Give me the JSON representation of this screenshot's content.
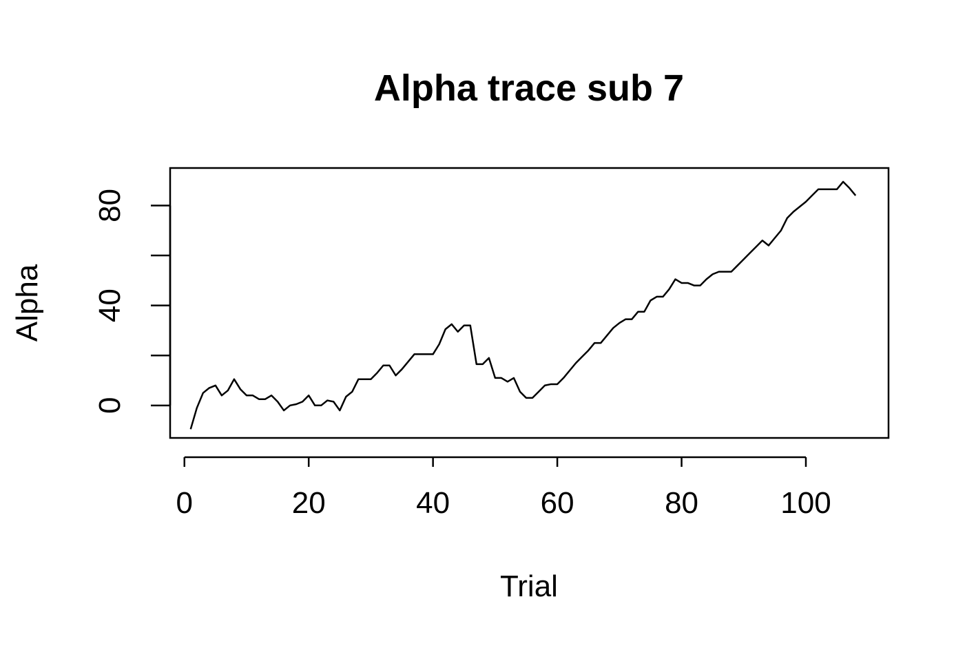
{
  "chart_data": {
    "type": "line",
    "title": "Alpha trace sub 7",
    "xlabel": "Trial",
    "ylabel": "Alpha",
    "xlim": [
      -2.3,
      113.3
    ],
    "ylim": [
      -13,
      95
    ],
    "xticks": [
      0,
      20,
      40,
      60,
      80,
      100
    ],
    "yticks": [
      0,
      20,
      40,
      60,
      80
    ],
    "yticks_labeled": [
      0,
      40,
      80
    ],
    "grid": false,
    "legend": "none",
    "series": [
      {
        "x": [
          1,
          2,
          3,
          4,
          5,
          6,
          7,
          8,
          9,
          10,
          11,
          12,
          13,
          14,
          15,
          16,
          17,
          18,
          19,
          20,
          21,
          22,
          23,
          24,
          25,
          26,
          27,
          28,
          29,
          30,
          31,
          32,
          33,
          34,
          35,
          36,
          37,
          38,
          39,
          40,
          41,
          42,
          43,
          44,
          45,
          46,
          47,
          48,
          49,
          50,
          51,
          52,
          53,
          54,
          55,
          56,
          57,
          58,
          59,
          60,
          61,
          62,
          63,
          64,
          65,
          66,
          67,
          68,
          69,
          70,
          71,
          72,
          73,
          74,
          75,
          76,
          77,
          78,
          79,
          80,
          81,
          82,
          83,
          84,
          85,
          86,
          87,
          88,
          89,
          90,
          91,
          92,
          93,
          94,
          95,
          96,
          97,
          98,
          99,
          100,
          101,
          102,
          103,
          104,
          105,
          106,
          107,
          108
        ],
        "y": [
          -9.5,
          -1,
          5,
          7,
          8,
          4,
          6,
          10.5,
          6.5,
          4,
          4,
          2.5,
          2.5,
          4,
          1.5,
          -2,
          0,
          0.5,
          1.5,
          4,
          0,
          0,
          2,
          1.5,
          -2,
          3.5,
          5.5,
          10.5,
          10.5,
          10.5,
          13,
          16,
          16,
          12,
          14.5,
          17.5,
          20.5,
          20.5,
          20.5,
          20.5,
          24.5,
          30.5,
          32.5,
          29.5,
          32,
          32,
          16.5,
          16.5,
          19,
          11,
          11,
          9.5,
          11,
          5.5,
          3,
          3,
          5.5,
          8,
          8.5,
          8.5,
          11,
          14,
          17,
          19.5,
          22,
          25,
          25,
          28,
          31,
          33,
          34.5,
          34.5,
          37.5,
          37.5,
          42,
          43.5,
          43.5,
          46.5,
          50.5,
          49,
          49,
          48,
          48,
          50.5,
          52.5,
          53.5,
          53.5,
          53.5,
          56,
          58.5,
          61,
          63.5,
          66,
          64,
          67,
          70,
          75,
          77.5,
          79.5,
          81.5,
          84,
          86.5,
          86.5,
          86.5,
          86.5,
          89.5,
          87,
          84
        ]
      }
    ]
  }
}
